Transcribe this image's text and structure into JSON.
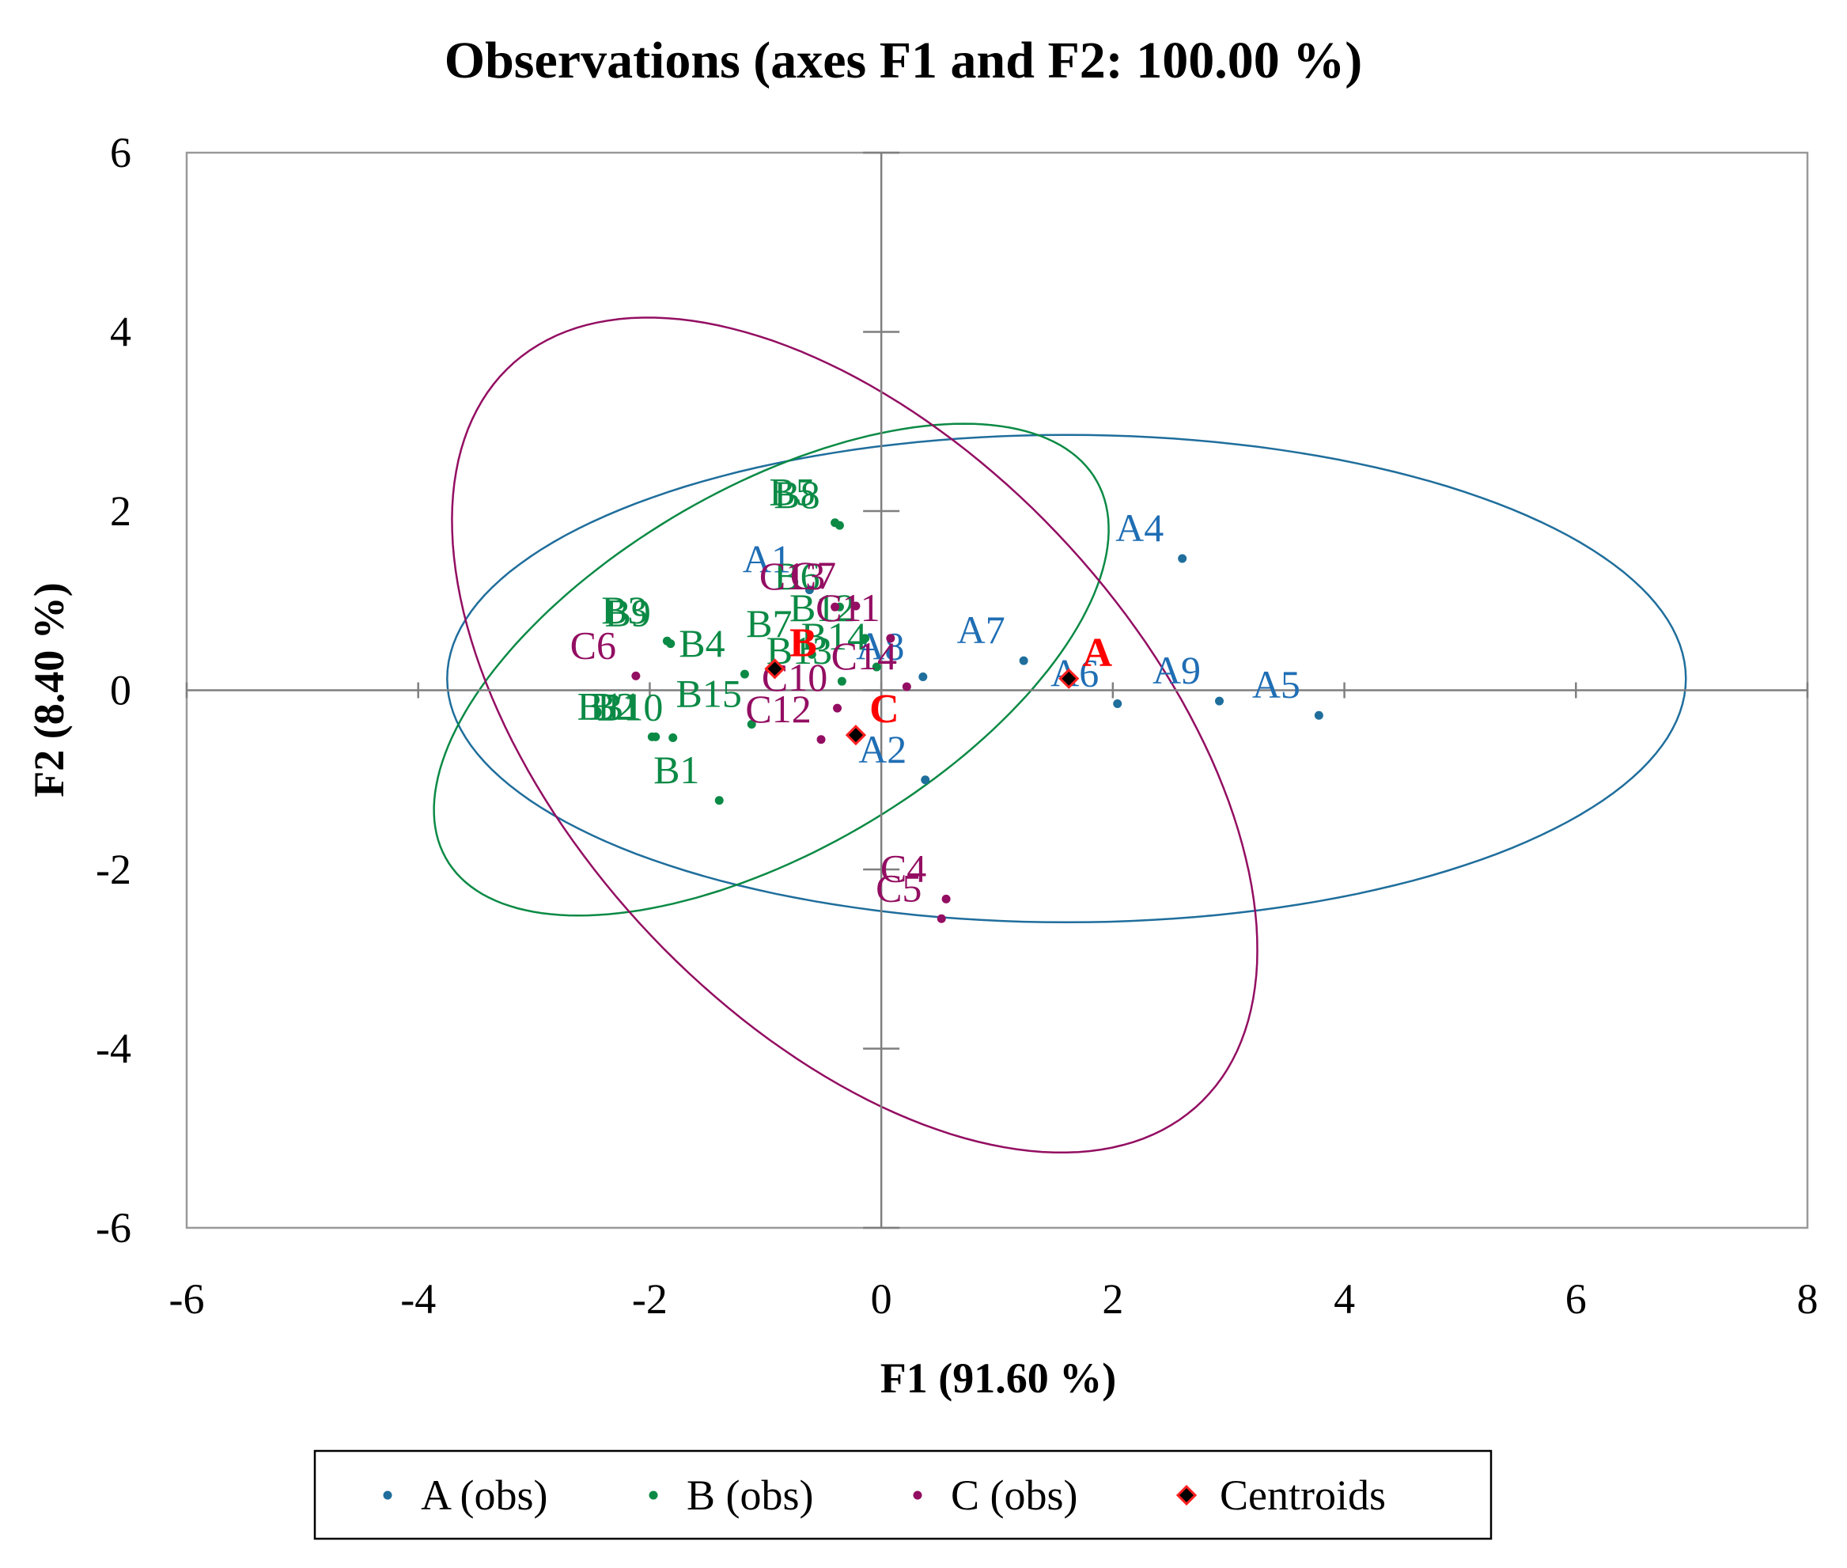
{
  "chart_data": {
    "type": "scatter",
    "title": "Observations (axes F1 and F2: 100.00 %)",
    "xlabel": "F1 (91.60 %)",
    "ylabel": "F2 (8.40 %)",
    "xlim": [
      -6,
      8
    ],
    "ylim": [
      -6,
      6
    ],
    "xticks": [
      "-6",
      "-4",
      "-2",
      "0",
      "2",
      "4",
      "6",
      "8"
    ],
    "yticks": [
      "-6",
      "-4",
      "-2",
      "0",
      "2",
      "4",
      "6"
    ],
    "grid": false,
    "legend_position": "bottom-center",
    "series": [
      {
        "name": "A (obs)",
        "color": "#1F6E9C",
        "label_color": "#1F6EB4",
        "points": [
          {
            "label": "A1",
            "x": -0.62,
            "y": 1.12
          },
          {
            "label": "A2",
            "x": 0.38,
            "y": -1.0
          },
          {
            "label": "A4",
            "x": 2.6,
            "y": 1.47
          },
          {
            "label": "A5",
            "x": 3.78,
            "y": -0.28
          },
          {
            "label": "A6",
            "x": 2.04,
            "y": -0.15
          },
          {
            "label": "A7",
            "x": 1.23,
            "y": 0.33
          },
          {
            "label": "A8",
            "x": 0.36,
            "y": 0.15
          },
          {
            "label": "A9",
            "x": 2.92,
            "y": -0.12
          }
        ],
        "ellipse": {
          "cx": 1.6,
          "cy": 0.13,
          "rx": 5.35,
          "ry": 2.72,
          "angle_deg": 0
        }
      },
      {
        "name": "B (obs)",
        "color": "#0B8A45",
        "label_color": "#0B8A45",
        "points": [
          {
            "label": "B1",
            "x": -1.4,
            "y": -1.23
          },
          {
            "label": "B2",
            "x": -1.95,
            "y": -0.52
          },
          {
            "label": "B3",
            "x": -1.85,
            "y": 0.55
          },
          {
            "label": "B5",
            "x": -0.4,
            "y": 1.87
          },
          {
            "label": "B6",
            "x": -0.36,
            "y": 0.93
          },
          {
            "label": "B7",
            "x": -0.6,
            "y": 0.4
          },
          {
            "label": "B8",
            "x": -0.36,
            "y": 1.84
          },
          {
            "label": "B9",
            "x": -1.82,
            "y": 0.52
          },
          {
            "label": "B10",
            "x": -1.8,
            "y": -0.53
          },
          {
            "label": "B11",
            "x": -1.98,
            "y": -0.52
          },
          {
            "label": "B12",
            "x": -0.14,
            "y": 0.58
          },
          {
            "label": "B13",
            "x": -0.34,
            "y": 0.1
          },
          {
            "label": "B4",
            "x": -1.18,
            "y": 0.18
          },
          {
            "label": "B14",
            "x": -0.04,
            "y": 0.26
          },
          {
            "label": "B15",
            "x": -1.12,
            "y": -0.38
          }
        ],
        "ellipse": {
          "cx": -0.95,
          "cy": 0.23,
          "rx": 3.55,
          "ry": 1.85,
          "angle_deg": 42
        }
      },
      {
        "name": "C (obs)",
        "color": "#930E62",
        "label_color": "#930E62",
        "points": [
          {
            "label": "C4",
            "x": 0.56,
            "y": -2.33
          },
          {
            "label": "C5",
            "x": 0.52,
            "y": -2.55
          },
          {
            "label": "C6",
            "x": -2.12,
            "y": 0.16
          },
          {
            "label": "C7",
            "x": -0.22,
            "y": 0.94
          },
          {
            "label": "C10",
            "x": -0.38,
            "y": -0.2
          },
          {
            "label": "C11",
            "x": 0.08,
            "y": 0.58
          },
          {
            "label": "C12",
            "x": -0.52,
            "y": -0.55
          },
          {
            "label": "C13",
            "x": -0.4,
            "y": 0.93
          },
          {
            "label": "C14",
            "x": 0.22,
            "y": 0.04
          }
        ],
        "ellipse": {
          "cx": -0.23,
          "cy": -0.5,
          "rx": 5.15,
          "ry": 2.7,
          "angle_deg": -60
        }
      }
    ],
    "centroids": {
      "name": "Centroids",
      "fill": "#000000",
      "stroke": "#FF2020",
      "label_color": "#FF0000",
      "points": [
        {
          "label": "A",
          "x": 1.62,
          "y": 0.13
        },
        {
          "label": "B",
          "x": -0.92,
          "y": 0.24
        },
        {
          "label": "C",
          "x": -0.22,
          "y": -0.5
        }
      ]
    },
    "legend": [
      "A (obs)",
      "B (obs)",
      "C (obs)",
      "Centroids"
    ]
  }
}
